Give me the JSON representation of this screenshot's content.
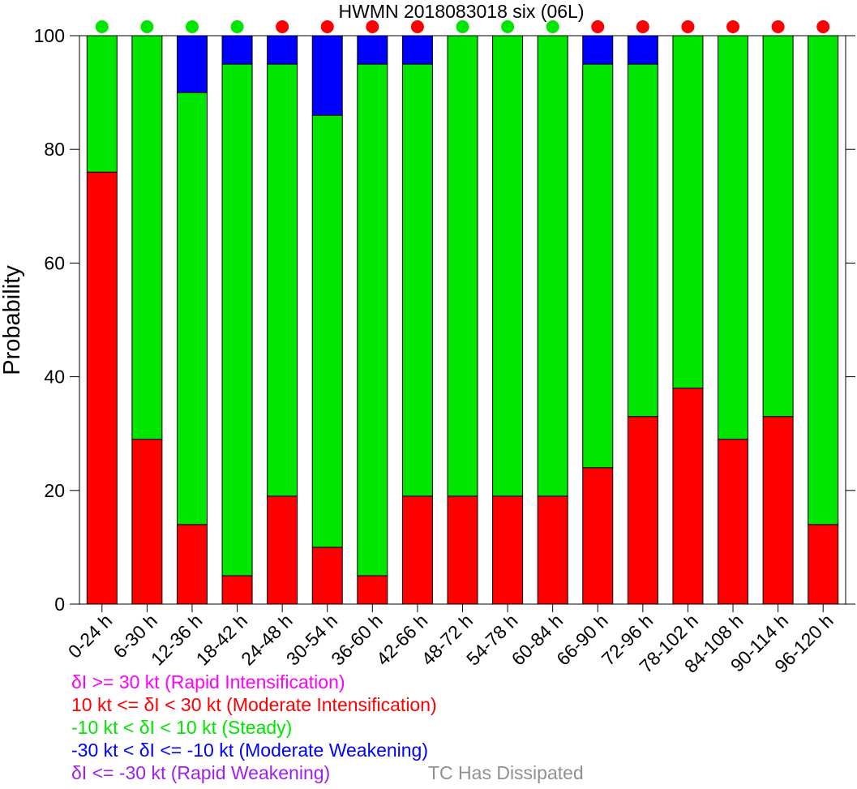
{
  "chart_data": {
    "type": "bar",
    "stacked": true,
    "title": "HWMN 2018083018 six (06L)",
    "ylabel": "Probability",
    "xlabel": "",
    "ylim": [
      0,
      100
    ],
    "yticks": [
      0,
      20,
      40,
      60,
      80,
      100
    ],
    "grid": false,
    "categories": [
      "0-24 h",
      "6-30 h",
      "12-36 h",
      "18-42 h",
      "24-48 h",
      "30-54 h",
      "36-60 h",
      "42-66 h",
      "48-72 h",
      "54-78 h",
      "60-84 h",
      "66-90 h",
      "72-96 h",
      "78-102 h",
      "84-108 h",
      "90-114 h",
      "96-120 h"
    ],
    "series": [
      {
        "name": "10 kt <= δI < 30 kt (Moderate Intensification)",
        "color": "#ff0000",
        "values": [
          76,
          29,
          14,
          5,
          19,
          10,
          5,
          19,
          19,
          19,
          19,
          24,
          33,
          38,
          29,
          33,
          14
        ]
      },
      {
        "name": "-10 kt < δI < 10 kt (Steady)",
        "color": "#00e600",
        "values": [
          24,
          71,
          76,
          90,
          76,
          76,
          90,
          76,
          81,
          81,
          81,
          71,
          62,
          62,
          71,
          67,
          86
        ]
      },
      {
        "name": "-30 kt < δI <= -10 kt (Moderate Weakening)",
        "color": "#0000ff",
        "values": [
          0,
          0,
          10,
          5,
          5,
          14,
          5,
          5,
          0,
          0,
          0,
          5,
          5,
          0,
          0,
          0,
          0
        ]
      }
    ],
    "indicator_dots": [
      "green",
      "green",
      "green",
      "green",
      "red",
      "red",
      "red",
      "red",
      "green",
      "green",
      "green",
      "red",
      "red",
      "red",
      "red",
      "red",
      "red"
    ],
    "legend": [
      {
        "text": "δI >= 30 kt (Rapid Intensification)",
        "color": "#ff00ff"
      },
      {
        "text": "10 kt <= δI < 30 kt (Moderate Intensification)",
        "color": "#ff0000"
      },
      {
        "text": "-10 kt < δI < 10 kt (Steady)",
        "color": "#00e600"
      },
      {
        "text": "-30 kt < δI <= -10 kt (Moderate Weakening)",
        "color": "#0000ff"
      },
      {
        "text": "δI <= -30 kt (Rapid Weakening)",
        "color": "#a020f0"
      }
    ],
    "note": {
      "text": "TC Has Dissipated",
      "color": "#909090"
    },
    "dot_colors": {
      "green": "#00e600",
      "red": "#ff0000"
    }
  }
}
